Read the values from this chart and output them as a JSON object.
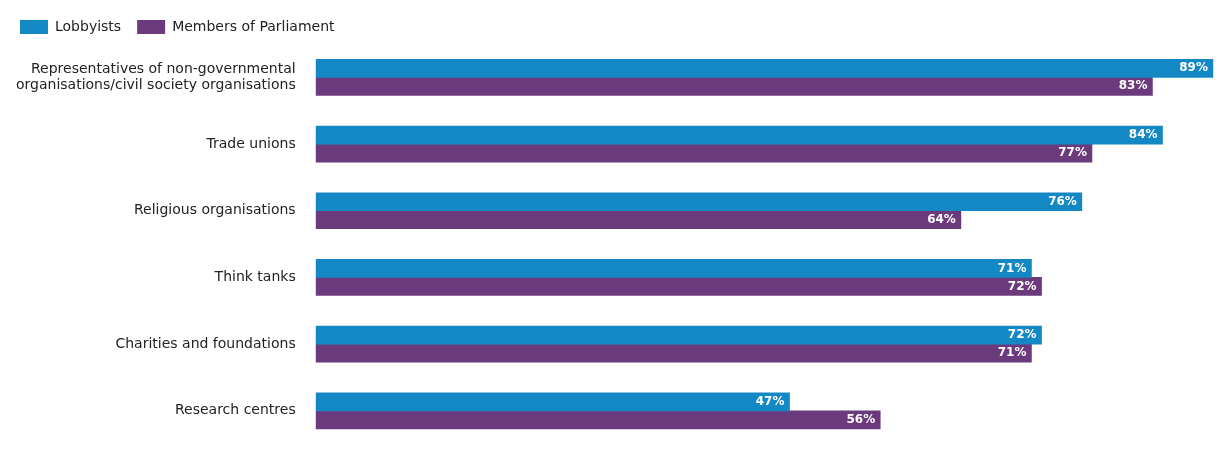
{
  "chart_data": {
    "type": "bar",
    "orientation": "horizontal",
    "categories": [
      "Representatives of non-governmental\norganisations/civil society organisations",
      "Trade unions",
      "Religious organisations",
      "Think tanks",
      "Charities and foundations",
      "Research centres"
    ],
    "series": [
      {
        "name": "Lobbyists",
        "color": "#1488c4",
        "values": [
          89,
          84,
          76,
          71,
          72,
          47
        ],
        "value_labels": [
          "89%",
          "84%",
          "76%",
          "71%",
          "72%",
          "47%"
        ]
      },
      {
        "name": "Members of Parliament",
        "color": "#6b3a7c",
        "values": [
          83,
          77,
          64,
          72,
          71,
          56
        ],
        "value_labels": [
          "83%",
          "77%",
          "64%",
          "72%",
          "71%",
          "56%"
        ]
      }
    ],
    "tick_labels": "y",
    "legend": "top",
    "grid": false
  }
}
